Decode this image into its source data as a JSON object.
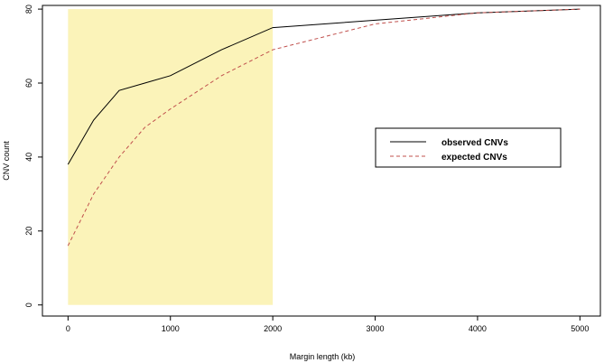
{
  "chart_data": {
    "type": "line",
    "title": "",
    "xlabel": "Margin length (kb)",
    "ylabel": "CNV count",
    "xlim": [
      -250,
      5200
    ],
    "ylim": [
      -3,
      81
    ],
    "xticks": [
      0,
      1000,
      2000,
      3000,
      4000,
      5000
    ],
    "yticks": [
      0,
      20,
      40,
      60,
      80
    ],
    "grid": false,
    "legend_position": "right",
    "highlight_region": {
      "x": [
        0,
        2000
      ],
      "y": [
        0,
        80
      ],
      "color": "#fbf3b9"
    },
    "series": [
      {
        "name": "observed CNVs",
        "color": "#000000",
        "dash": "solid",
        "x": [
          0,
          250,
          500,
          750,
          1000,
          1500,
          2000,
          3000,
          4000,
          5000
        ],
        "values": [
          38,
          50,
          58,
          60,
          62,
          69,
          75,
          77,
          79,
          80
        ]
      },
      {
        "name": "expected CNVs",
        "color": "#c0504d",
        "dash": "dashed",
        "x": [
          0,
          250,
          500,
          750,
          1000,
          1500,
          2000,
          3000,
          4000,
          5000
        ],
        "values": [
          16,
          30,
          40,
          48,
          53,
          62,
          69,
          76,
          79,
          80
        ]
      }
    ]
  }
}
